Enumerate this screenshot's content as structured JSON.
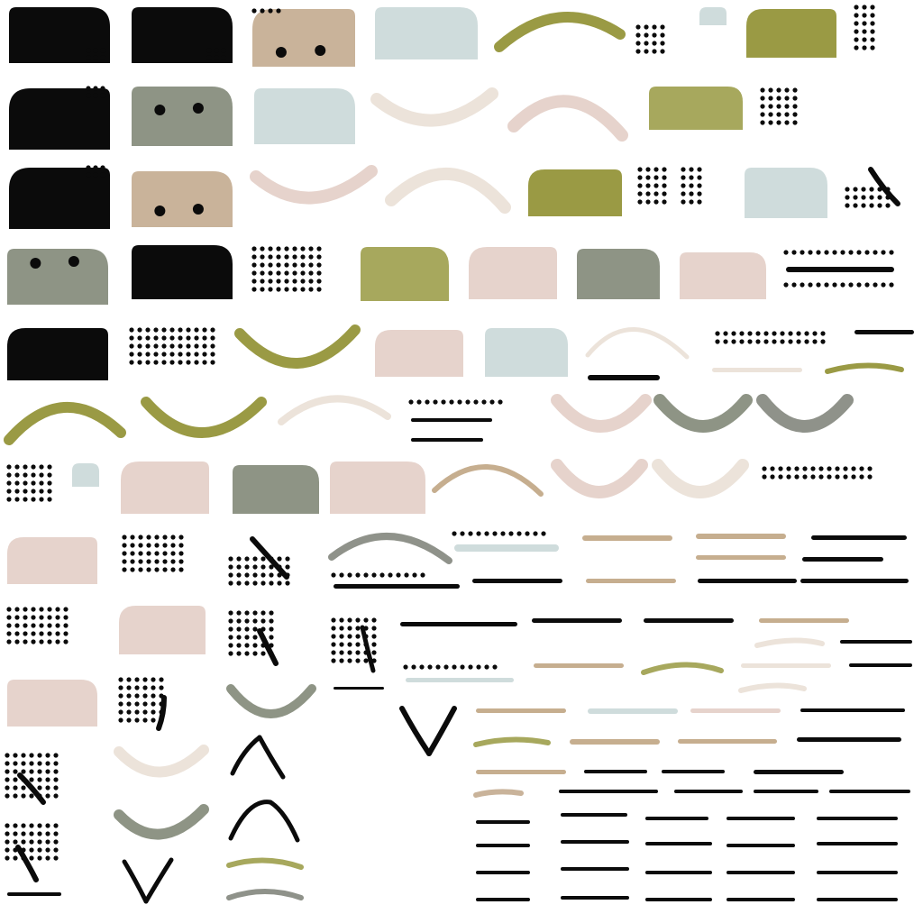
{
  "atlas": {
    "background": "#ffffff",
    "palette": {
      "black": "#0b0b0b",
      "tan": "#c9b39a",
      "olive": "#9a9a44",
      "olive_gray": "#8e9485",
      "pale_blue": "#cfdcdc",
      "blush": "#e6d3cc",
      "cream": "#ece3da",
      "sand": "#c6ae8f",
      "sage": "#a7a85d",
      "gray": "#8f928a"
    }
  }
}
